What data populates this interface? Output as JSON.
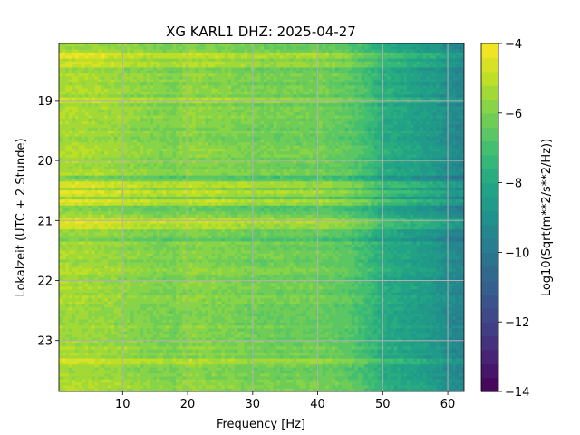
{
  "chart_data": {
    "type": "heatmap",
    "title": "XG KARL1  DHZ: 2025-04-27",
    "xlabel": "Frequency [Hz]",
    "ylabel": "Lokalzeit (UTC + 2 Stunde)",
    "x_ticks": [
      10,
      20,
      30,
      40,
      50,
      60
    ],
    "y_ticks": [
      19,
      20,
      21,
      22,
      23
    ],
    "xlim": [
      0.2,
      62.5
    ],
    "ylim": [
      23.85,
      18.05
    ],
    "grid": true,
    "colormap": "viridis",
    "colorbar": {
      "label": "Log10(Sqrt(m**2/s**2/Hz))",
      "range": [
        -14,
        -4
      ],
      "ticks": [
        -4,
        -6,
        -8,
        -10,
        -12,
        -14
      ],
      "tick_labels": [
        "−4",
        "−6",
        "−8",
        "−10",
        "−12",
        "−14"
      ],
      "levels": 25
    },
    "spectrum_profile": {
      "frequency_hz": [
        0,
        5,
        10,
        15,
        18,
        20,
        25,
        30,
        35,
        40,
        45,
        48,
        50,
        52,
        55,
        58,
        60,
        62.5
      ],
      "level": [
        -5.3,
        -5.4,
        -5.6,
        -5.9,
        -6.0,
        -5.7,
        -5.9,
        -6.1,
        -6.2,
        -6.2,
        -6.6,
        -7.2,
        -7.8,
        -8.0,
        -8.3,
        -8.6,
        -9.1,
        -9.5
      ]
    },
    "bright_bands_hour": [
      18.25,
      18.4,
      19.0,
      20.4,
      20.55,
      20.7,
      21.0,
      21.1,
      23.35
    ],
    "dark_bands_hour": [
      20.3,
      20.62,
      20.8,
      21.3
    ]
  }
}
